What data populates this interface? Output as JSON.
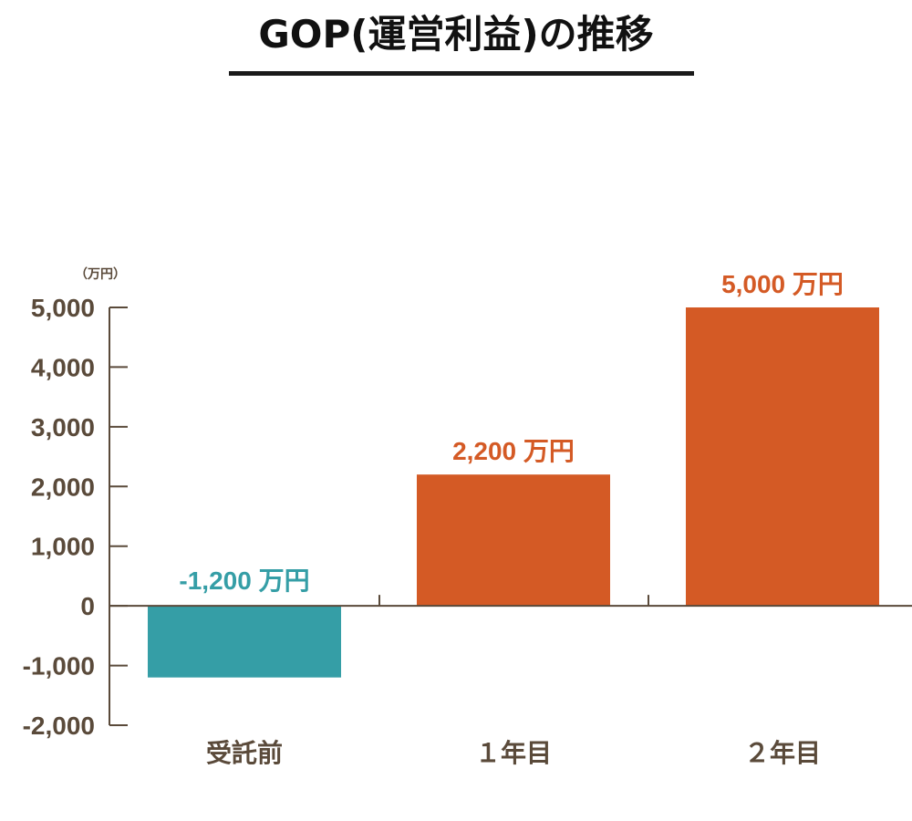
{
  "title": "GOP(運営利益)の推移",
  "chart_data": {
    "type": "bar",
    "unit_label": "（万円）",
    "categories": [
      "受託前",
      "１年目",
      "２年目"
    ],
    "values": [
      -1200,
      2200,
      5000
    ],
    "value_labels": [
      "-1,200 万円",
      "2,200 万円",
      "5,000 万円"
    ],
    "colors": [
      "#359ea6",
      "#d45a25",
      "#d45a25"
    ],
    "label_colors": [
      "#359ea6",
      "#d45a25",
      "#d45a25"
    ],
    "ylim": [
      -2000,
      5000
    ],
    "yticks": [
      5000,
      4000,
      3000,
      2000,
      1000,
      0,
      -1000,
      -2000
    ],
    "ytick_labels": [
      "5,000",
      "4,000",
      "3,000",
      "2,000",
      "1,000",
      "0",
      "-1,000",
      "-2,000"
    ],
    "axis_color": "#5a4a3a",
    "grid": false,
    "legend": "none"
  }
}
